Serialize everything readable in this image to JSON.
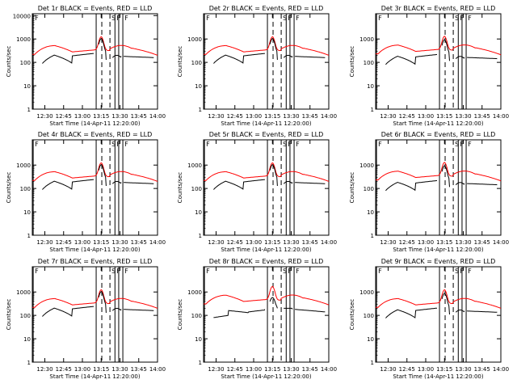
{
  "common": {
    "xlabel": "Start Time (14-Apr-11 12:20:00)",
    "ylabel": "Counts/sec",
    "x_tick_labels": [
      "12:30",
      "12:45",
      "13:00",
      "13:15",
      "13:30",
      "13:45",
      "14:00"
    ],
    "y_tick_labels": [
      "1",
      "10",
      "100",
      "1000"
    ],
    "colors": {
      "events": "#000000",
      "lld": "#ff0000"
    },
    "ylim": [
      1,
      12000
    ],
    "xlim_minutes_after_start": [
      0,
      100
    ]
  },
  "chart_data": [
    {
      "type": "line",
      "title": "Det 1r BLACK = Events, RED = LLD",
      "top_tick": "10000",
      "events_scale": 1.0,
      "lld_scale": 1.0,
      "events_variant": "A",
      "flag_labels": [
        "F",
        "S",
        "F",
        "F"
      ],
      "series": [
        {
          "name": "Events",
          "color": "#000000"
        },
        {
          "name": "LLD",
          "color": "#ff0000"
        }
      ]
    },
    {
      "type": "line",
      "title": "Det 2r BLACK = Events, RED = LLD",
      "top_tick": "1000",
      "events_scale": 1.0,
      "lld_scale": 1.0,
      "events_variant": "A",
      "flag_labels": [
        "F",
        "S",
        "F",
        "F"
      ],
      "series": [
        {
          "name": "Events",
          "color": "#000000"
        },
        {
          "name": "LLD",
          "color": "#ff0000"
        }
      ]
    },
    {
      "type": "line",
      "title": "Det 3r BLACK = Events, RED = LLD",
      "top_tick": "1000",
      "events_scale": 0.9,
      "lld_scale": 1.05,
      "events_variant": "A",
      "flag_labels": [
        "F",
        "S",
        "F",
        "F"
      ],
      "series": [
        {
          "name": "Events",
          "color": "#000000"
        },
        {
          "name": "LLD",
          "color": "#ff0000"
        }
      ]
    },
    {
      "type": "line",
      "title": "Det 4r BLACK = Events, RED = LLD",
      "top_tick": "1000",
      "events_scale": 1.0,
      "lld_scale": 1.0,
      "events_variant": "A",
      "flag_labels": [
        "F",
        "S",
        "F",
        "F"
      ],
      "series": [
        {
          "name": "Events",
          "color": "#000000"
        },
        {
          "name": "LLD",
          "color": "#ff0000"
        }
      ]
    },
    {
      "type": "line",
      "title": "Det 5r BLACK = Events, RED = LLD",
      "top_tick": "1000",
      "events_scale": 1.0,
      "lld_scale": 1.0,
      "events_variant": "A",
      "flag_labels": [
        "F",
        "S",
        "F",
        "F"
      ],
      "series": [
        {
          "name": "Events",
          "color": "#000000"
        },
        {
          "name": "LLD",
          "color": "#ff0000"
        }
      ]
    },
    {
      "type": "line",
      "title": "Det 6r BLACK = Events, RED = LLD",
      "top_tick": "1000",
      "events_scale": 0.9,
      "lld_scale": 1.05,
      "events_variant": "A",
      "flag_labels": [
        "F",
        "S",
        "F",
        "F"
      ],
      "series": [
        {
          "name": "Events",
          "color": "#000000"
        },
        {
          "name": "LLD",
          "color": "#ff0000"
        }
      ]
    },
    {
      "type": "line",
      "title": "Det 7r BLACK = Events, RED = LLD",
      "top_tick": "1000",
      "events_scale": 1.0,
      "lld_scale": 1.0,
      "events_variant": "A",
      "flag_labels": [
        "F",
        "S",
        "F",
        "F"
      ],
      "series": [
        {
          "name": "Events",
          "color": "#000000"
        },
        {
          "name": "LLD",
          "color": "#ff0000"
        }
      ]
    },
    {
      "type": "line",
      "title": "Det 8r BLACK = Events, RED = LLD",
      "top_tick": "1000",
      "events_scale": 1.0,
      "lld_scale": 1.4,
      "events_variant": "B",
      "flag_labels": [
        "F",
        "S",
        "F",
        "F"
      ],
      "series": [
        {
          "name": "Events",
          "color": "#000000"
        },
        {
          "name": "LLD",
          "color": "#ff0000"
        }
      ]
    },
    {
      "type": "line",
      "title": "Det 9r BLACK = Events, RED = LLD",
      "top_tick": "1000",
      "events_scale": 0.85,
      "lld_scale": 1.0,
      "events_variant": "A",
      "flag_labels": [
        "F",
        "S",
        "F",
        "F"
      ],
      "series": [
        {
          "name": "Events",
          "color": "#000000"
        },
        {
          "name": "LLD",
          "color": "#ff0000"
        }
      ]
    }
  ]
}
